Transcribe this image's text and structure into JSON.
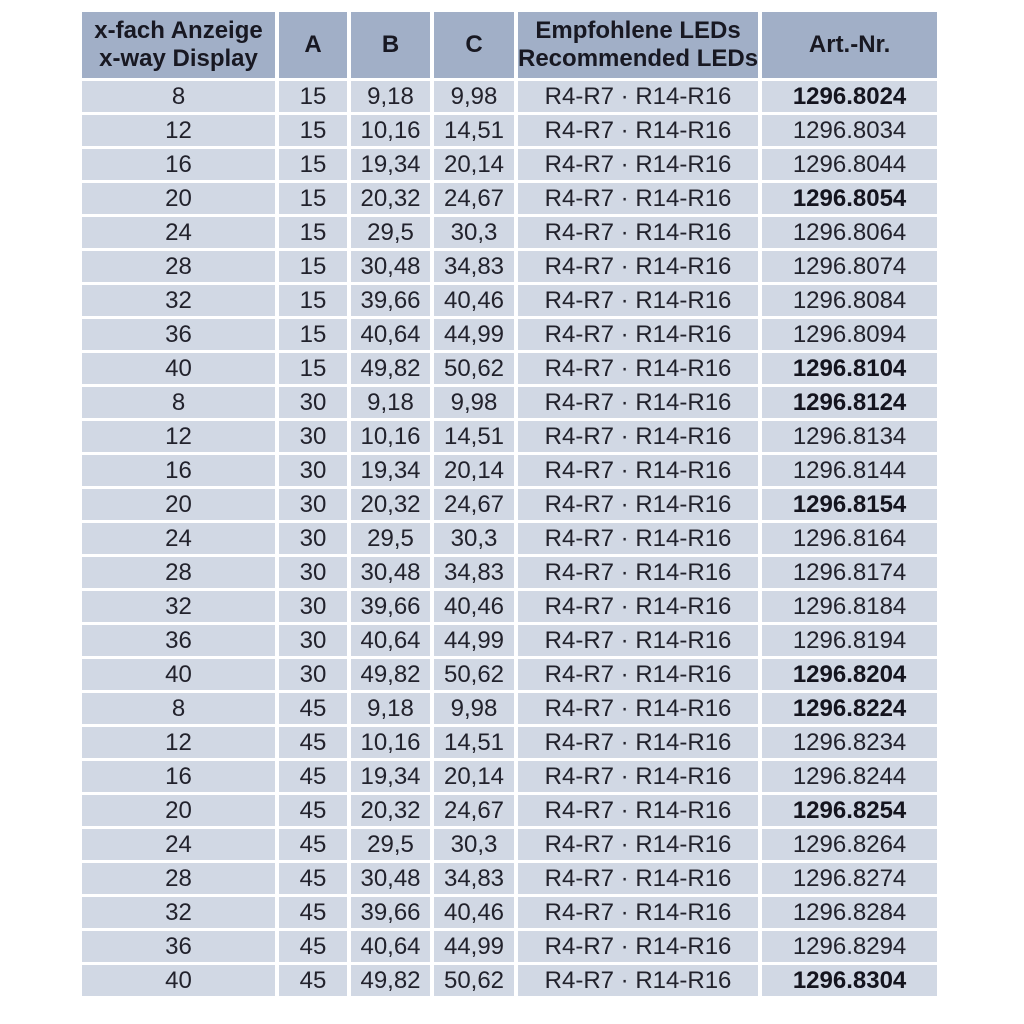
{
  "table": {
    "header": {
      "xway_line1": "x-fach Anzeige",
      "xway_line2": "x-way Display",
      "a": "A",
      "b": "B",
      "c": "C",
      "led_line1": "Empfohlene LEDs",
      "led_line2": "Recommended LEDs",
      "art": "Art.-Nr."
    },
    "rows": [
      {
        "x": "8",
        "a": "15",
        "b": "9,18",
        "c": "9,98",
        "leds": "R4-R7 · R14-R16",
        "art": "1296.8024",
        "bold": true
      },
      {
        "x": "12",
        "a": "15",
        "b": "10,16",
        "c": "14,51",
        "leds": "R4-R7 · R14-R16",
        "art": "1296.8034",
        "bold": false
      },
      {
        "x": "16",
        "a": "15",
        "b": "19,34",
        "c": "20,14",
        "leds": "R4-R7 · R14-R16",
        "art": "1296.8044",
        "bold": false
      },
      {
        "x": "20",
        "a": "15",
        "b": "20,32",
        "c": "24,67",
        "leds": "R4-R7 · R14-R16",
        "art": "1296.8054",
        "bold": true
      },
      {
        "x": "24",
        "a": "15",
        "b": "29,5",
        "c": "30,3",
        "leds": "R4-R7 · R14-R16",
        "art": "1296.8064",
        "bold": false
      },
      {
        "x": "28",
        "a": "15",
        "b": "30,48",
        "c": "34,83",
        "leds": "R4-R7 · R14-R16",
        "art": "1296.8074",
        "bold": false
      },
      {
        "x": "32",
        "a": "15",
        "b": "39,66",
        "c": "40,46",
        "leds": "R4-R7 · R14-R16",
        "art": "1296.8084",
        "bold": false
      },
      {
        "x": "36",
        "a": "15",
        "b": "40,64",
        "c": "44,99",
        "leds": "R4-R7 · R14-R16",
        "art": "1296.8094",
        "bold": false
      },
      {
        "x": "40",
        "a": "15",
        "b": "49,82",
        "c": "50,62",
        "leds": "R4-R7 · R14-R16",
        "art": "1296.8104",
        "bold": true
      },
      {
        "x": "8",
        "a": "30",
        "b": "9,18",
        "c": "9,98",
        "leds": "R4-R7 · R14-R16",
        "art": "1296.8124",
        "bold": true
      },
      {
        "x": "12",
        "a": "30",
        "b": "10,16",
        "c": "14,51",
        "leds": "R4-R7 · R14-R16",
        "art": "1296.8134",
        "bold": false
      },
      {
        "x": "16",
        "a": "30",
        "b": "19,34",
        "c": "20,14",
        "leds": "R4-R7 · R14-R16",
        "art": "1296.8144",
        "bold": false
      },
      {
        "x": "20",
        "a": "30",
        "b": "20,32",
        "c": "24,67",
        "leds": "R4-R7 · R14-R16",
        "art": "1296.8154",
        "bold": true
      },
      {
        "x": "24",
        "a": "30",
        "b": "29,5",
        "c": "30,3",
        "leds": "R4-R7 · R14-R16",
        "art": "1296.8164",
        "bold": false
      },
      {
        "x": "28",
        "a": "30",
        "b": "30,48",
        "c": "34,83",
        "leds": "R4-R7 · R14-R16",
        "art": "1296.8174",
        "bold": false
      },
      {
        "x": "32",
        "a": "30",
        "b": "39,66",
        "c": "40,46",
        "leds": "R4-R7 · R14-R16",
        "art": "1296.8184",
        "bold": false
      },
      {
        "x": "36",
        "a": "30",
        "b": "40,64",
        "c": "44,99",
        "leds": "R4-R7 · R14-R16",
        "art": "1296.8194",
        "bold": false
      },
      {
        "x": "40",
        "a": "30",
        "b": "49,82",
        "c": "50,62",
        "leds": "R4-R7 · R14-R16",
        "art": "1296.8204",
        "bold": true
      },
      {
        "x": "8",
        "a": "45",
        "b": "9,18",
        "c": "9,98",
        "leds": "R4-R7 · R14-R16",
        "art": "1296.8224",
        "bold": true
      },
      {
        "x": "12",
        "a": "45",
        "b": "10,16",
        "c": "14,51",
        "leds": "R4-R7 · R14-R16",
        "art": "1296.8234",
        "bold": false
      },
      {
        "x": "16",
        "a": "45",
        "b": "19,34",
        "c": "20,14",
        "leds": "R4-R7 · R14-R16",
        "art": "1296.8244",
        "bold": false
      },
      {
        "x": "20",
        "a": "45",
        "b": "20,32",
        "c": "24,67",
        "leds": "R4-R7 · R14-R16",
        "art": "1296.8254",
        "bold": true
      },
      {
        "x": "24",
        "a": "45",
        "b": "29,5",
        "c": "30,3",
        "leds": "R4-R7 · R14-R16",
        "art": "1296.8264",
        "bold": false
      },
      {
        "x": "28",
        "a": "45",
        "b": "30,48",
        "c": "34,83",
        "leds": "R4-R7 · R14-R16",
        "art": "1296.8274",
        "bold": false
      },
      {
        "x": "32",
        "a": "45",
        "b": "39,66",
        "c": "40,46",
        "leds": "R4-R7 · R14-R16",
        "art": "1296.8284",
        "bold": false
      },
      {
        "x": "36",
        "a": "45",
        "b": "40,64",
        "c": "44,99",
        "leds": "R4-R7 · R14-R16",
        "art": "1296.8294",
        "bold": false
      },
      {
        "x": "40",
        "a": "45",
        "b": "49,82",
        "c": "50,62",
        "leds": "R4-R7 · R14-R16",
        "art": "1296.8304",
        "bold": true
      }
    ],
    "colors": {
      "header_bg": "#a1afc7",
      "row_bg": "#d1d8e4",
      "gap": "#ffffff",
      "text": "#22222c"
    }
  }
}
